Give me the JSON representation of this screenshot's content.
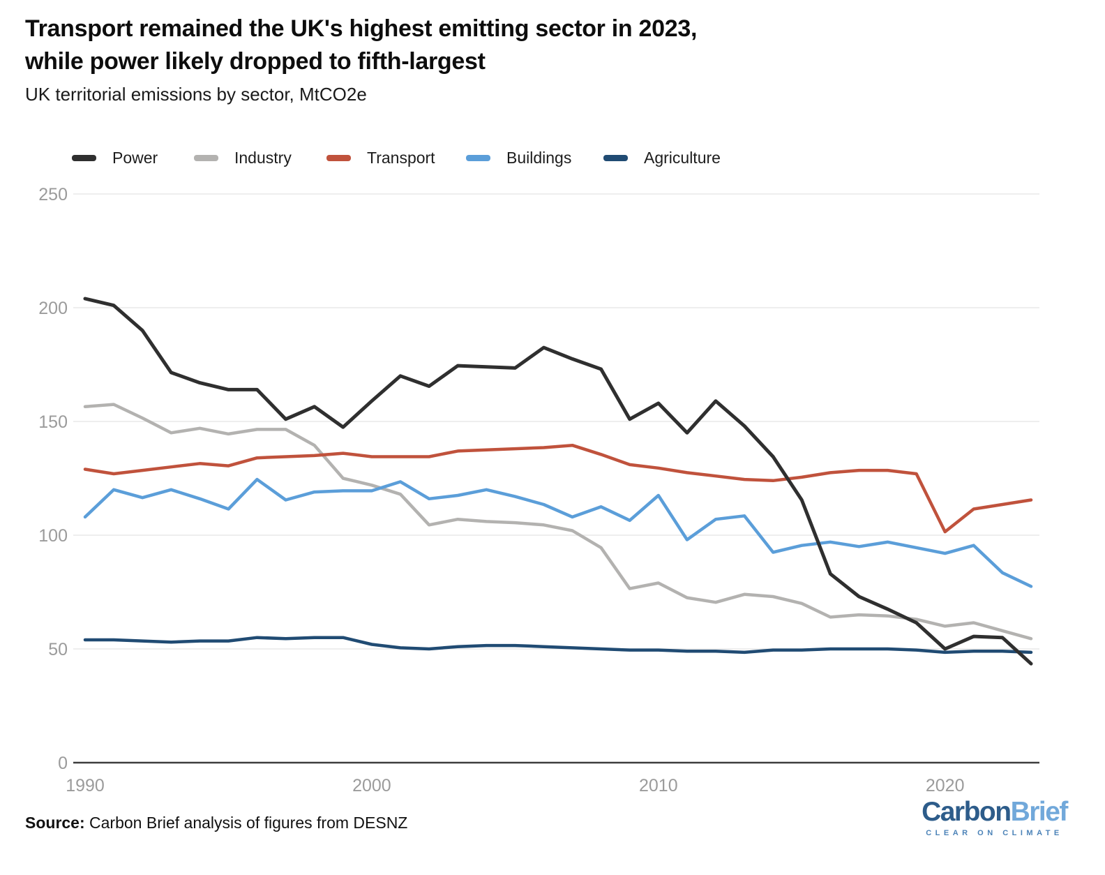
{
  "header": {
    "title_line1": "Transport remained the UK's highest emitting sector in 2023,",
    "title_line2": "while power likely dropped to fifth-largest",
    "subtitle": "UK territorial emissions by sector, MtCO2e"
  },
  "chart_data": {
    "type": "line",
    "title": "Transport remained the UK's highest emitting sector in 2023, while power likely dropped to fifth-largest",
    "subtitle": "UK territorial emissions by sector, MtCO2e",
    "ylabel": "MtCO2e",
    "ylim": [
      0,
      250
    ],
    "y_ticks": [
      0,
      50,
      100,
      150,
      200,
      250
    ],
    "x_ticks": [
      1990,
      2000,
      2010,
      2020
    ],
    "grid": "horizontal",
    "legend_position": "top",
    "x": [
      1990,
      1991,
      1992,
      1993,
      1994,
      1995,
      1996,
      1997,
      1998,
      1999,
      2000,
      2001,
      2002,
      2003,
      2004,
      2005,
      2006,
      2007,
      2008,
      2009,
      2010,
      2011,
      2012,
      2013,
      2014,
      2015,
      2016,
      2017,
      2018,
      2019,
      2020,
      2021,
      2022,
      2023
    ],
    "series": [
      {
        "name": "Power",
        "color": "#2f2f2f",
        "values": [
          204,
          201,
          190,
          171.5,
          167,
          164,
          164,
          151,
          156.5,
          147.5,
          159,
          170,
          165.5,
          174.5,
          174,
          173.5,
          182.5,
          177.5,
          173,
          151,
          158,
          145,
          159,
          148,
          134.5,
          115.5,
          83,
          73,
          67.5,
          61.5,
          50,
          55.5,
          55,
          43.5
        ]
      },
      {
        "name": "Industry",
        "color": "#b3b2b0",
        "values": [
          156.5,
          157.5,
          151.5,
          145,
          147,
          144.5,
          146.5,
          146.5,
          139.5,
          125,
          122,
          118,
          104.5,
          107,
          106,
          105.5,
          104.5,
          102,
          94.5,
          76.5,
          79,
          72.5,
          70.5,
          74,
          73,
          70,
          64,
          65,
          64.5,
          63,
          60,
          61.5,
          58,
          54.5
        ]
      },
      {
        "name": "Transport",
        "color": "#c0523c",
        "values": [
          129,
          127,
          128.5,
          130,
          131.5,
          130.5,
          134,
          134.5,
          135,
          136,
          134.5,
          134.5,
          134.5,
          137,
          137.5,
          138,
          138.5,
          139.5,
          135.5,
          131,
          129.5,
          127.5,
          126,
          124.5,
          124,
          125.5,
          127.5,
          128.5,
          128.5,
          127,
          101.5,
          111.5,
          113.5,
          115.5
        ]
      },
      {
        "name": "Buildings",
        "color": "#5b9ed9",
        "values": [
          108,
          120,
          116.5,
          120,
          116,
          111.5,
          124.5,
          115.5,
          119,
          119.5,
          119.5,
          123.5,
          116,
          117.5,
          120,
          117,
          113.5,
          108,
          112.5,
          106.5,
          117.5,
          98,
          107,
          108.5,
          92.5,
          95.5,
          97,
          95,
          97,
          94.5,
          92,
          95.5,
          83.5,
          77.5
        ]
      },
      {
        "name": "Agriculture",
        "color": "#204b73",
        "values": [
          54,
          54,
          53.5,
          53,
          53.5,
          53.5,
          55,
          54.5,
          55,
          55,
          52,
          50.5,
          50,
          51,
          51.5,
          51.5,
          51,
          50.5,
          50,
          49.5,
          49.5,
          49,
          49,
          48.5,
          49.5,
          49.5,
          50,
          50,
          50,
          49.5,
          48.5,
          49,
          49,
          48.5
        ]
      }
    ]
  },
  "footer": {
    "source_label": "Source:",
    "source_text": "Carbon Brief analysis of figures from DESNZ"
  },
  "logo": {
    "part1": "Carbon",
    "part2": "Brief",
    "tagline": "CLEAR ON CLIMATE"
  }
}
